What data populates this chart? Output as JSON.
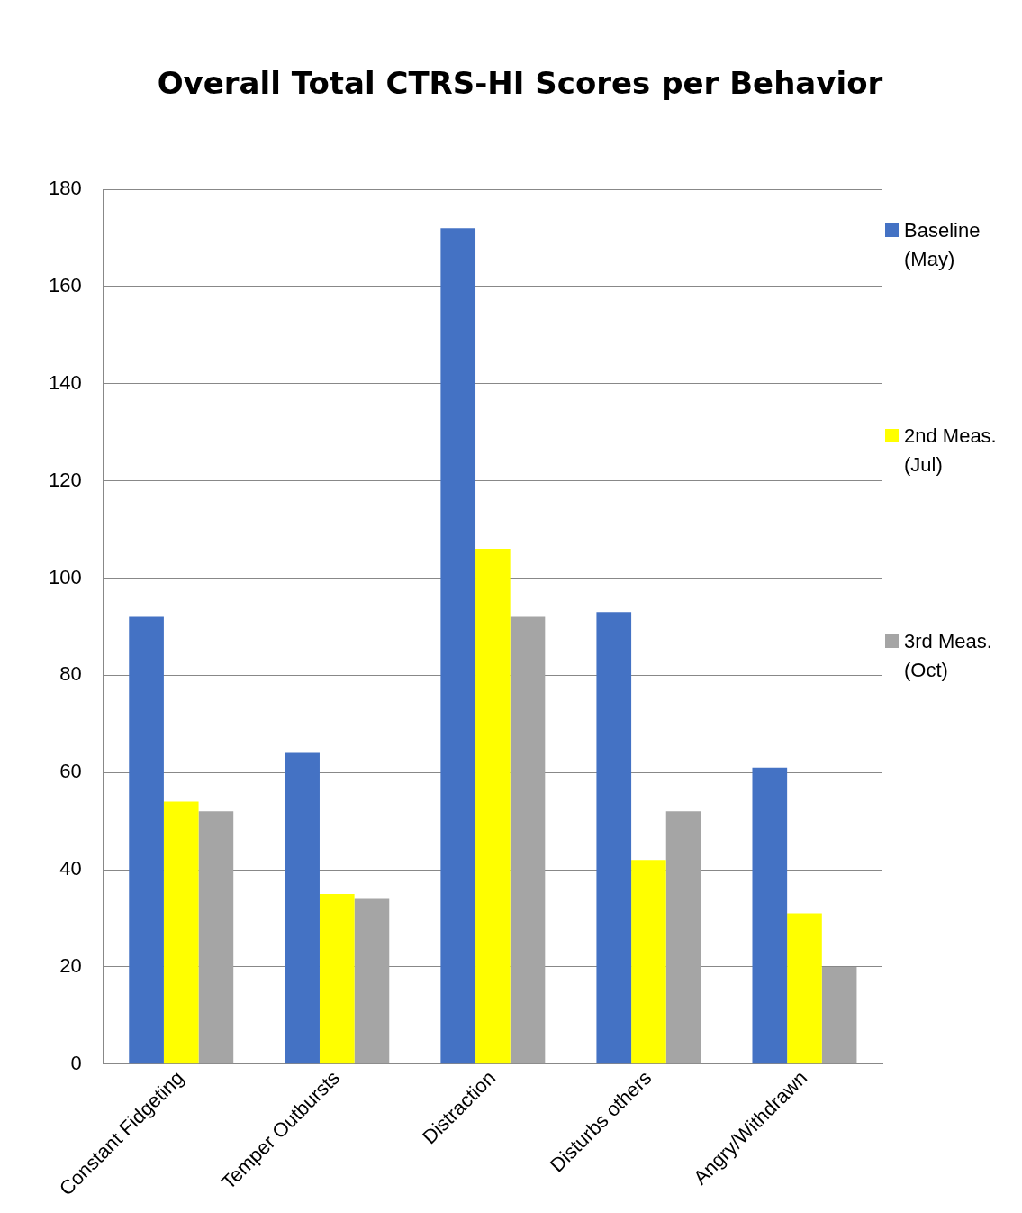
{
  "chart_data": {
    "type": "bar",
    "title": "Overall Total CTRS-HI Scores per Behavior",
    "categories": [
      "Constant Fidgeting",
      "Temper Outbursts",
      "Distraction",
      "Disturbs others",
      "Angry/Withdrawn"
    ],
    "series": [
      {
        "name": "Baseline (May)",
        "color": "#4472c4",
        "values": [
          92,
          64,
          172,
          93,
          61
        ]
      },
      {
        "name": "2nd Meas. (Jul)",
        "color": "#ffff00",
        "values": [
          54,
          35,
          106,
          42,
          31
        ]
      },
      {
        "name": "3rd Meas. (Oct)",
        "color": "#a5a5a5",
        "values": [
          52,
          34,
          92,
          52,
          20
        ]
      }
    ],
    "ylim": [
      0,
      180
    ],
    "yticks": [
      0,
      20,
      40,
      60,
      80,
      100,
      120,
      140,
      160,
      180
    ],
    "grid": "y",
    "legend": "right"
  }
}
